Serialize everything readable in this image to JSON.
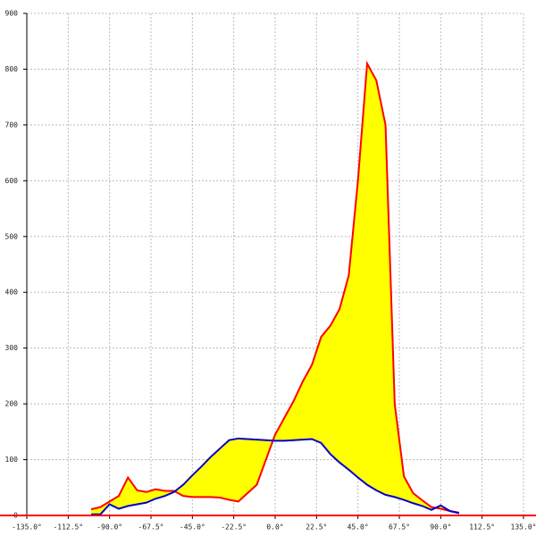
{
  "chart_data": {
    "type": "area-between",
    "x": [
      -100,
      -95,
      -90,
      -85,
      -80,
      -75,
      -70,
      -65,
      -60,
      -55,
      -50,
      -45,
      -40,
      -35,
      -30,
      -25,
      -20,
      -15,
      -10,
      -5,
      0,
      5,
      10,
      15,
      20,
      25,
      30,
      35,
      40,
      45,
      50,
      55,
      60,
      65,
      70,
      75,
      80,
      85,
      90,
      95,
      100
    ],
    "series": [
      {
        "color": "#ff0000",
        "values": [
          11,
          15,
          25,
          35,
          68,
          45,
          42,
          47,
          44,
          44,
          35,
          33,
          33,
          33,
          32,
          28,
          25,
          40,
          55,
          100,
          145,
          175,
          205,
          240,
          270,
          320,
          340,
          370,
          430,
          600,
          810,
          780,
          700,
          200,
          70,
          40,
          27,
          15,
          12,
          8,
          5
        ]
      },
      {
        "color": "#0000cc",
        "values": [
          2,
          2,
          20,
          12,
          17,
          20,
          23,
          30,
          35,
          42,
          55,
          72,
          88,
          105,
          120,
          135,
          138,
          137,
          136,
          135,
          134,
          134,
          135,
          136,
          137,
          130,
          110,
          95,
          82,
          68,
          55,
          45,
          37,
          33,
          28,
          22,
          17,
          10,
          18,
          8,
          4
        ]
      }
    ],
    "fill_color": "#ffff00",
    "xlim": [
      -135,
      135
    ],
    "xticks": [
      {
        "value": -135,
        "label": "-135.0°"
      },
      {
        "value": -112.5,
        "label": "-112.5°"
      },
      {
        "value": -90,
        "label": "-90.0°"
      },
      {
        "value": -67.5,
        "label": "-67.5°"
      },
      {
        "value": -45,
        "label": "-45.0°"
      },
      {
        "value": -22.5,
        "label": "-22.5°"
      },
      {
        "value": 0,
        "label": "0.0°"
      },
      {
        "value": 22.5,
        "label": "22.5°"
      },
      {
        "value": 45,
        "label": "45.0°"
      },
      {
        "value": 67.5,
        "label": "67.5°"
      },
      {
        "value": 90,
        "label": "90.0°"
      },
      {
        "value": 112.5,
        "label": "112.5°"
      },
      {
        "value": 135,
        "label": "135.0°"
      }
    ],
    "ylim": [
      0,
      900
    ],
    "yticks": [
      0,
      100,
      200,
      300,
      400,
      500,
      600,
      700,
      800,
      900
    ],
    "grid": true,
    "axis_color": "#ff0000"
  }
}
